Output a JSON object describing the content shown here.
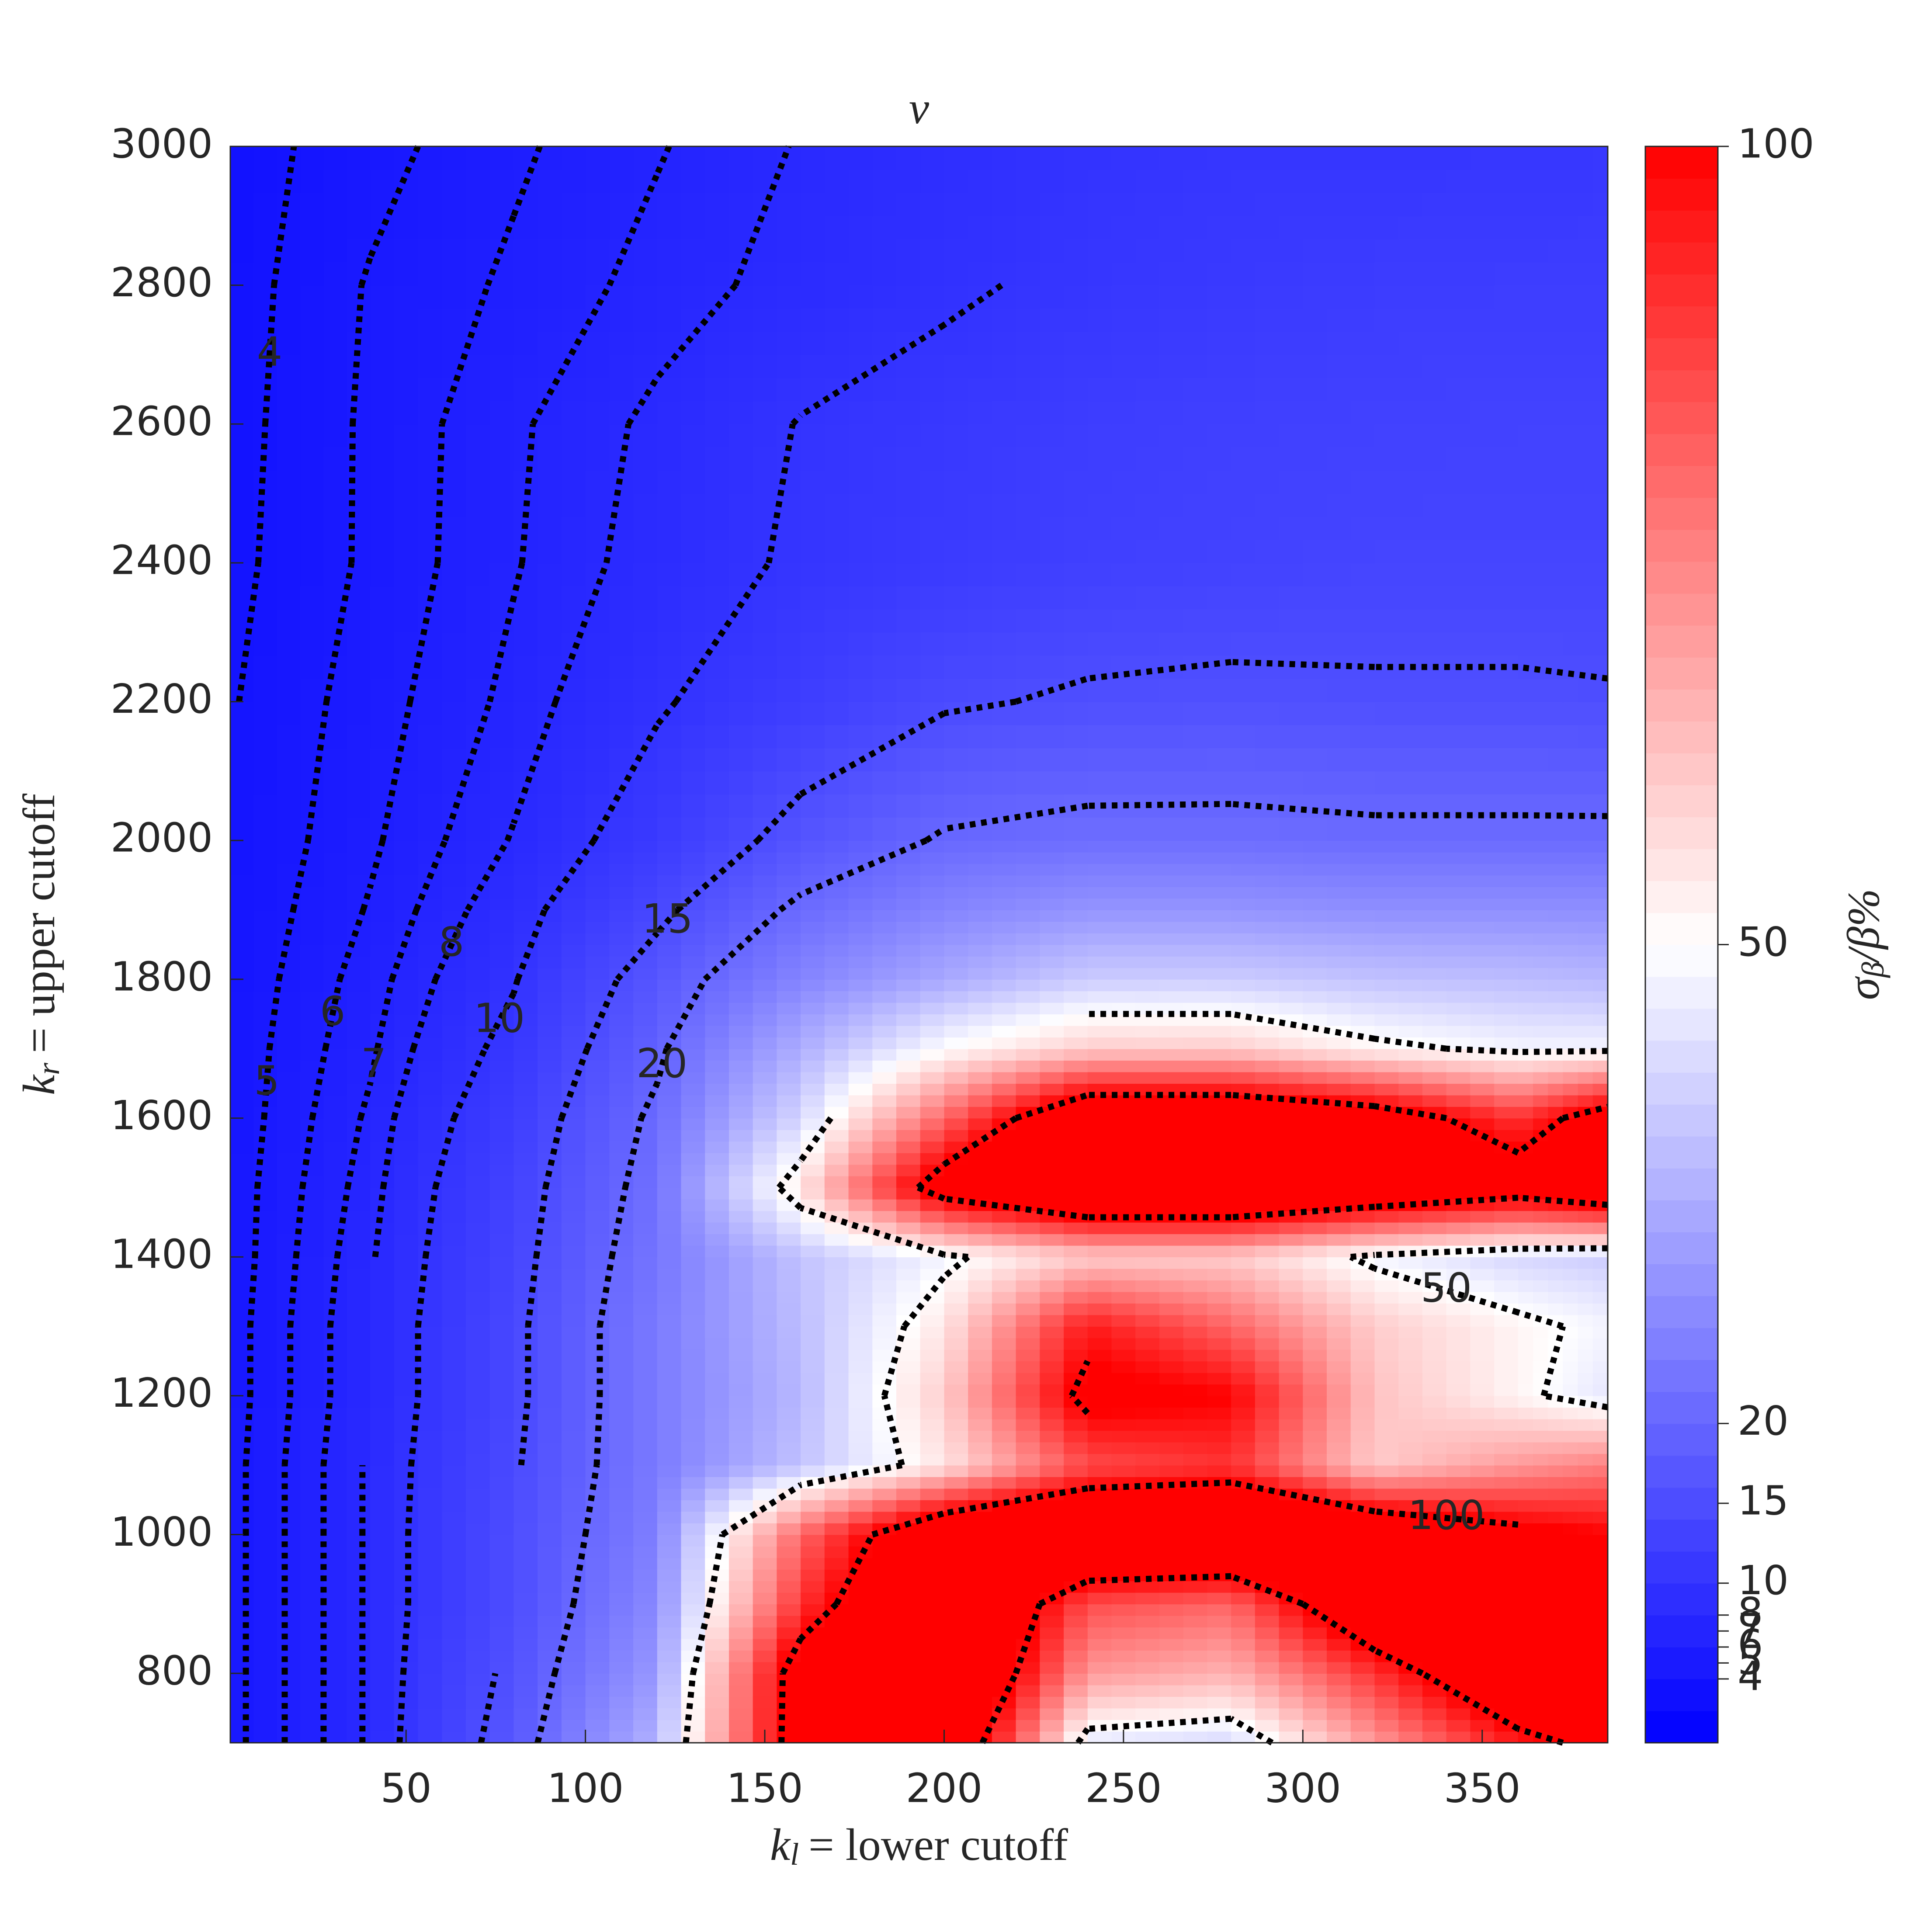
{
  "chart_data": {
    "type": "contour",
    "title": "v",
    "xlabel": {
      "var": "k",
      "sub": "l",
      "text": "= lower cutoff"
    },
    "ylabel": {
      "var": "k",
      "sub": "r",
      "text": "= upper cutoff"
    },
    "x": [
      1,
      40,
      80,
      120,
      160,
      200,
      240,
      280,
      320,
      360,
      385
    ],
    "y": [
      700,
      800,
      900,
      1000,
      1100,
      1200,
      1300,
      1400,
      1500,
      1600,
      1700,
      1800,
      1900,
      2000,
      2200,
      2400,
      2600,
      2800,
      3000
    ],
    "z": [
      [
        4.6,
        8.2,
        17,
        35,
        110,
        120,
        45,
        42,
        70,
        95,
        105
      ],
      [
        4.6,
        8.2,
        16,
        30,
        110,
        130,
        70,
        65,
        90,
        120,
        120
      ],
      [
        4.6,
        8.2,
        15,
        27,
        90,
        130,
        85,
        80,
        120,
        130,
        130
      ],
      [
        4.6,
        8.2,
        15,
        25,
        80,
        120,
        130,
        130,
        120,
        105,
        100
      ],
      [
        4.6,
        8.2,
        14.5,
        24,
        38,
        55,
        85,
        90,
        60,
        70,
        75
      ],
      [
        4.5,
        8,
        14,
        24,
        36,
        60,
        105,
        100,
        62,
        52,
        45
      ],
      [
        4.5,
        8,
        14,
        24,
        37,
        55,
        95,
        80,
        60,
        52,
        48
      ],
      [
        4.4,
        7.8,
        13.5,
        23,
        38,
        48,
        60,
        60,
        48,
        42,
        40
      ],
      [
        4.4,
        7.5,
        13,
        22,
        55,
        110,
        130,
        130,
        120,
        110,
        120
      ],
      [
        4.3,
        7.2,
        12,
        21,
        42,
        80,
        120,
        120,
        110,
        90,
        110
      ],
      [
        4.3,
        6.8,
        10.8,
        19,
        34,
        50,
        60,
        60,
        52,
        48,
        48
      ],
      [
        4.2,
        6.5,
        9.8,
        17,
        26,
        33,
        40,
        40,
        38,
        37,
        36
      ],
      [
        4.1,
        6.1,
        8.9,
        14,
        21,
        26,
        29,
        29,
        28,
        28,
        28
      ],
      [
        4,
        5.8,
        8.1,
        11.5,
        16.5,
        20.5,
        21.5,
        21.5,
        21,
        21,
        21
      ],
      [
        3.9,
        5.5,
        7.3,
        9.7,
        12,
        14.5,
        15.5,
        15.8,
        15.5,
        15.5,
        15.3
      ],
      [
        3.7,
        5.2,
        6.9,
        8.6,
        10.4,
        11.5,
        12.5,
        13,
        13.5,
        13.5,
        13.5
      ],
      [
        3.6,
        5.2,
        6.8,
        8.3,
        10.1,
        11,
        12,
        12.5,
        12.8,
        13,
        13
      ],
      [
        3.5,
        5.1,
        6.2,
        7.4,
        8.5,
        9.6,
        10.6,
        11.3,
        11.8,
        12,
        12
      ],
      [
        3.5,
        4.6,
        5.8,
        6.9,
        8.1,
        9,
        10,
        10.5,
        10.5,
        10.6,
        10.8
      ]
    ],
    "levels": [
      4,
      5,
      6,
      7,
      8,
      10,
      15,
      20,
      50,
      100
    ],
    "contour_color": "#000000",
    "contour_style": "dotted",
    "xlim": [
      1,
      385
    ],
    "ylim": [
      700,
      3000
    ],
    "xticks": [
      50,
      100,
      150,
      200,
      250,
      300,
      350
    ],
    "yticks": [
      800,
      1000,
      1200,
      1400,
      1600,
      1800,
      2000,
      2200,
      2400,
      2600,
      2800,
      3000
    ],
    "colorbar": {
      "label": {
        "var": "σ",
        "sub": "β",
        "text": "/β%"
      },
      "clim": [
        0,
        100
      ],
      "ticks": [
        4,
        5,
        6,
        7,
        8,
        10,
        15,
        20,
        50,
        100
      ],
      "colors": [
        "#0000ff",
        "#ffffff",
        "#ff0000"
      ]
    }
  }
}
